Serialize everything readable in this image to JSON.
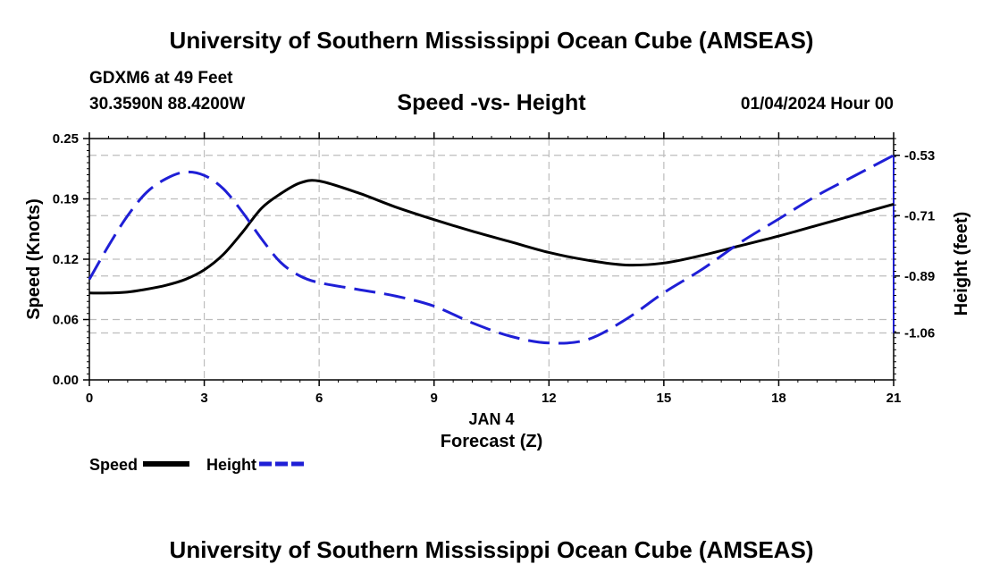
{
  "header": {
    "title": "University of Southern Mississippi Ocean Cube (AMSEAS)",
    "station": "GDXM6 at 49 Feet",
    "coords": "30.3590N  88.4200W",
    "datetime": "01/04/2024 Hour 00"
  },
  "footer": {
    "title": "University of Southern Mississippi Ocean Cube (AMSEAS)"
  },
  "chart_data": {
    "type": "line",
    "title": "Speed -vs- Height",
    "xlabel": "Forecast (Z)",
    "date_label": "JAN 4",
    "ylabel_left": "Speed (Knots)",
    "ylabel_right": "Height (feet)",
    "xlim": [
      0,
      21
    ],
    "ylim_left": [
      0,
      0.25
    ],
    "ylim_right": [
      -1.2,
      -0.48
    ],
    "x_ticks": [
      0,
      3,
      6,
      9,
      12,
      15,
      18,
      21
    ],
    "x_tick_labels": [
      "0",
      "3",
      "6",
      "9",
      "12",
      "15",
      "18",
      "21"
    ],
    "y_left_ticks": [
      0,
      0.0625,
      0.125,
      0.1875,
      0.25
    ],
    "y_left_tick_labels": [
      "0.00",
      "0.06",
      "0.12",
      "0.19",
      "0.25"
    ],
    "y_right_ticks": [
      -0.53,
      -0.71,
      -0.89,
      -1.06
    ],
    "y_right_tick_labels": [
      "-0.53",
      "-0.71",
      "-0.89",
      "-1.06"
    ],
    "grid": true,
    "series": [
      {
        "name": "Speed",
        "axis": "left",
        "color": "#000000",
        "dash": "solid",
        "x": [
          0,
          0.5,
          1,
          1.5,
          2,
          2.5,
          3,
          3.5,
          4,
          4.5,
          5,
          5.5,
          6,
          7,
          8,
          9,
          10,
          11,
          12,
          13,
          14,
          15,
          16,
          17,
          18,
          19,
          20,
          21
        ],
        "values": [
          0.09,
          0.09,
          0.091,
          0.094,
          0.098,
          0.104,
          0.114,
          0.13,
          0.153,
          0.178,
          0.193,
          0.204,
          0.206,
          0.194,
          0.179,
          0.166,
          0.154,
          0.143,
          0.132,
          0.124,
          0.119,
          0.121,
          0.129,
          0.139,
          0.149,
          0.16,
          0.171,
          0.182
        ]
      },
      {
        "name": "Height",
        "axis": "right",
        "color": "#1f1fd6",
        "dash": "dashed",
        "x": [
          0,
          0.5,
          1,
          1.5,
          2,
          2.5,
          3,
          3.5,
          4,
          4.5,
          5,
          5.5,
          6,
          7,
          8,
          9,
          10,
          11,
          12,
          13,
          14,
          15,
          16,
          17,
          18,
          19,
          20,
          21
        ],
        "values": [
          -0.9,
          -0.8,
          -0.71,
          -0.64,
          -0.6,
          -0.58,
          -0.59,
          -0.63,
          -0.7,
          -0.78,
          -0.85,
          -0.89,
          -0.91,
          -0.93,
          -0.95,
          -0.98,
          -1.03,
          -1.07,
          -1.09,
          -1.08,
          -1.02,
          -0.94,
          -0.87,
          -0.79,
          -0.72,
          -0.65,
          -0.59,
          -0.53
        ]
      }
    ]
  },
  "legend": {
    "speed_label": "Speed",
    "height_label": "Height"
  }
}
